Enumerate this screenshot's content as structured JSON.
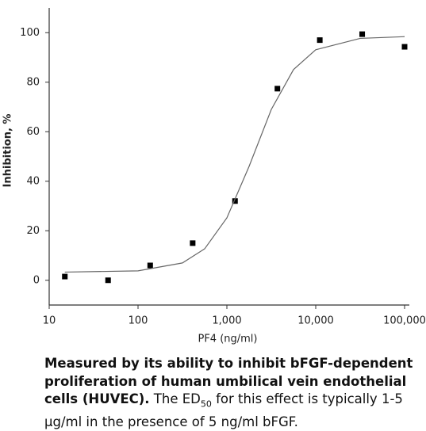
{
  "chart_data": {
    "type": "scatter",
    "xlabel": "PF4 (ng/ml)",
    "ylabel": "Inhibition, %",
    "xscale": "log",
    "xlim": [
      10,
      100000
    ],
    "ylim": [
      -10,
      110
    ],
    "xticks": [
      10,
      100,
      {
        "value": 1000,
        "label": "1,000"
      },
      {
        "value": 10000,
        "label": "10,000"
      },
      {
        "value": 100000,
        "label": "100,000"
      }
    ],
    "yticks": [
      0,
      20,
      40,
      60,
      80,
      100
    ],
    "series": [
      {
        "type": "scatter",
        "color": "#000000",
        "x": [
          15,
          46,
          137,
          412,
          1235,
          3704,
          11111,
          33333,
          100000
        ],
        "values": [
          1.5,
          0,
          6,
          15,
          32,
          77.4,
          97,
          99.4,
          94.3
        ]
      },
      {
        "type": "line",
        "color": "#666666",
        "x": [
          15,
          100,
          316,
          562,
          1000,
          1778,
          3162,
          5623,
          10000,
          31623,
          100000
        ],
        "values": [
          3.3,
          3.8,
          7.0,
          12.7,
          25.2,
          46.0,
          69.0,
          85.1,
          93.1,
          97.7,
          98.4
        ]
      }
    ]
  },
  "caption": {
    "bold": "Measured by its ability to inhibit bFGF-dependent proliferation of human umbilical vein endothelial cells (HUVEC).",
    "text_before": " The ED",
    "subscript": "50",
    "text_after": " for this effect is typically 1-5 µg/ml in the presence of 5 ng/ml bFGF."
  }
}
